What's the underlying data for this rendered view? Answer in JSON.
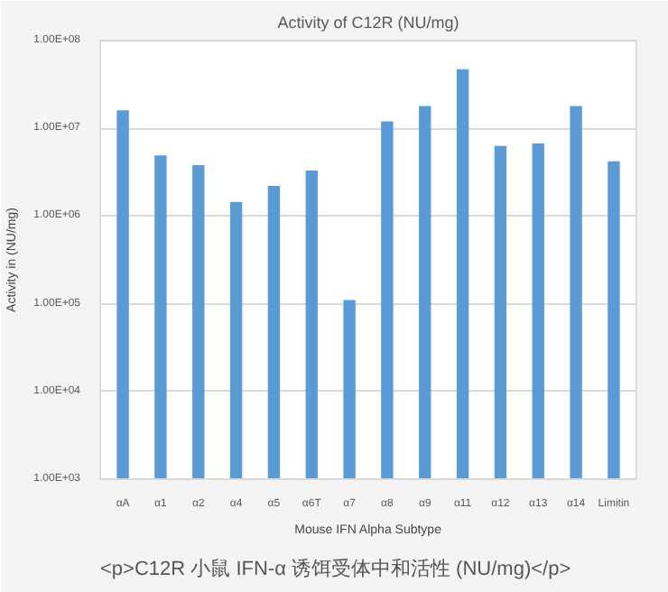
{
  "chart_data": {
    "type": "bar",
    "title": "Activity of C12R (NU/mg)",
    "xlabel": "Mouse IFN Alpha Subtype",
    "ylabel": "Activity in (NU/mg)",
    "categories": [
      "αA",
      "α1",
      "α2",
      "α4",
      "α5",
      "α6T",
      "α7",
      "α8",
      "α9",
      "α11",
      "α12",
      "α13",
      "α14",
      "Limitin"
    ],
    "values": [
      16000000,
      4900000,
      3800000,
      1450000,
      2200000,
      3300000,
      110000,
      12000000,
      18000000,
      47000000,
      6300000,
      6700000,
      18000000,
      4200000
    ],
    "color": "#5b9bd5",
    "log": "y",
    "ylim": [
      1000,
      100000000
    ],
    "yticks": [
      {
        "value": 1000,
        "label": "1.00E+03"
      },
      {
        "value": 10000,
        "label": "1.00E+04"
      },
      {
        "value": 100000,
        "label": "1.00E+05"
      },
      {
        "value": 1000000,
        "label": "1.00E+06"
      },
      {
        "value": 10000000,
        "label": "1.00E+07"
      },
      {
        "value": 100000000,
        "label": "1.00E+08"
      }
    ],
    "grid": "y",
    "annotations": [
      "<p>C12R 小鼠 IFN-α 诱饵受体中和活性 (NU/mg)</p>"
    ]
  }
}
